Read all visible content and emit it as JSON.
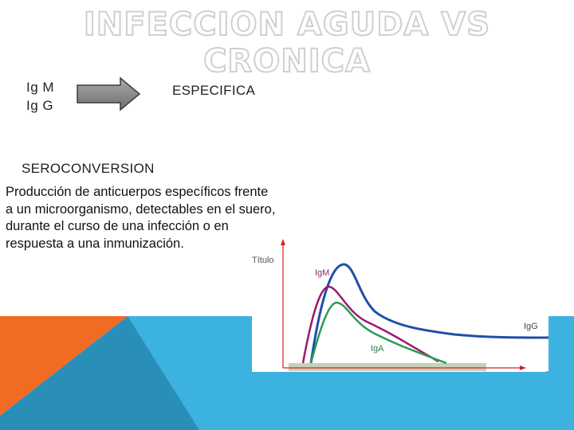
{
  "slide": {
    "title": "INFECCION AGUDA VS CRONICA",
    "ig_labels": [
      "Ig M",
      "Ig G"
    ],
    "arrow_target": "ESPECIFICA",
    "term": "SEROCONVERSION",
    "definition": "Producción de anticuerpos específicos frente a un microorganismo, detectables en el suero, durante el curso de una infección o en respuesta a una inmunización."
  },
  "graph": {
    "y_axis_label": "Título",
    "curves": [
      {
        "name": "IgM",
        "color": "#1f4fa8"
      },
      {
        "name": "IgG",
        "color": "#1f4fa8"
      },
      {
        "name": "IgA",
        "color": "#2e9a57"
      }
    ],
    "extra_curve_color": "#9b1b6e",
    "axis_color": "#d62020"
  },
  "colors": {
    "deco_orange": "#f26b22",
    "deco_blue": "#3bb2e0",
    "deco_dark_blue": "#2a8fb8",
    "arrow_fill": "#8a8a8a"
  }
}
